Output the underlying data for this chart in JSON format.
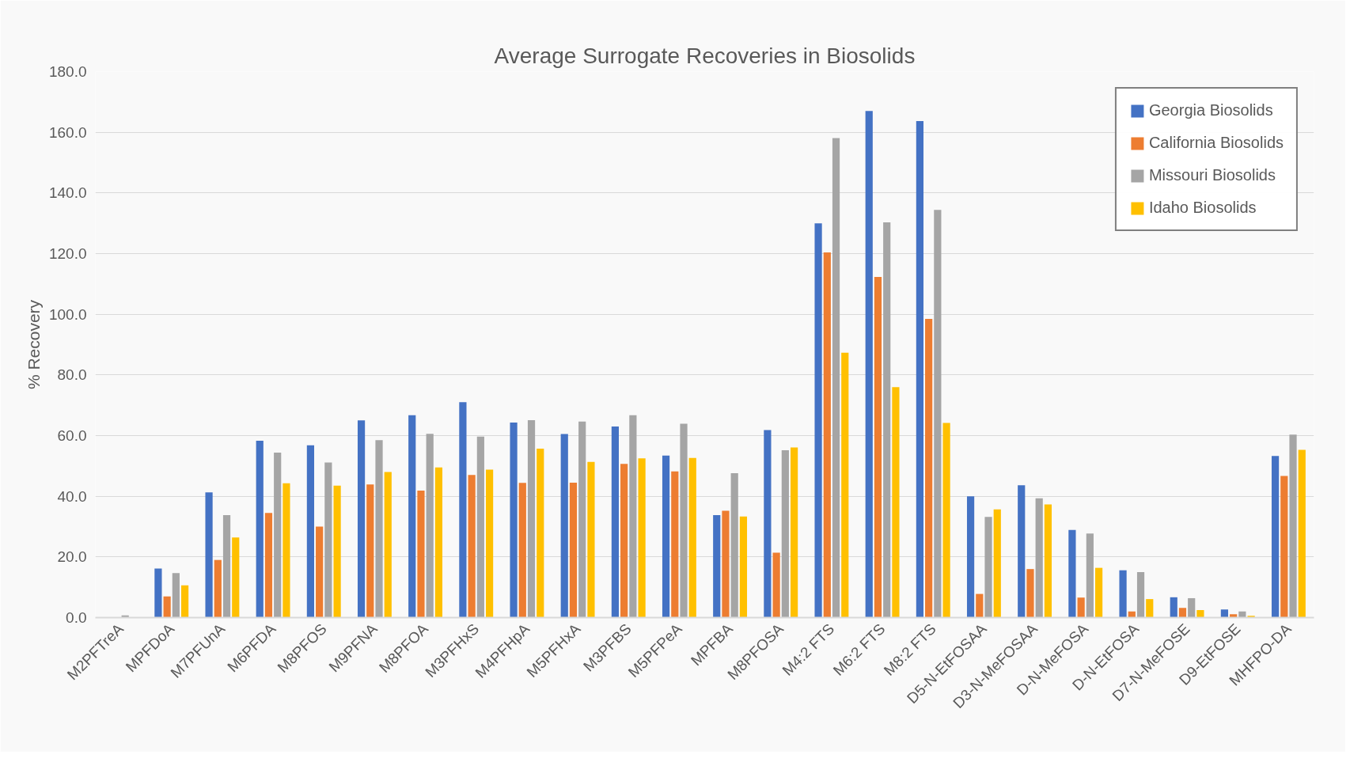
{
  "chart_data": {
    "type": "bar",
    "title": "Average Surrogate Recoveries in Biosolids",
    "ylabel": "% Recovery",
    "categories": [
      "M2PFTreA",
      "MPFDoA",
      "M7PFUnA",
      "M6PFDA",
      "M8PFOS",
      "M9PFNA",
      "M8PFOA",
      "M3PFHxS",
      "M4PFHpA",
      "M5PFHxA",
      "M3PFBS",
      "M5PFPeA",
      "MPFBA",
      "M8PFOSA",
      "M4:2 FTS",
      "M6:2 FTS",
      "M8:2 FTS",
      "D5-N-EtFOSAA",
      "D3-N-MeFOSAA",
      "D-N-MeFOSA",
      "D-N-EtFOSA",
      "D7-N-MeFOSE",
      "D9-EtFOSE",
      "MHFPO-DA"
    ],
    "series": [
      {
        "name": "Georgia Biosolids",
        "color": "#4472c4",
        "values": [
          0,
          16.2,
          41.3,
          58.3,
          56.8,
          65.0,
          66.7,
          71.0,
          64.3,
          60.5,
          63.0,
          53.4,
          33.8,
          61.8,
          130.0,
          167.0,
          163.7,
          40.0,
          43.6,
          28.9,
          15.6,
          6.7,
          2.7,
          53.3
        ]
      },
      {
        "name": "California Biosolids",
        "color": "#ed7d31",
        "values": [
          0,
          7.0,
          19.0,
          34.5,
          30.0,
          43.9,
          41.9,
          47.0,
          44.4,
          44.5,
          50.7,
          48.2,
          35.2,
          21.4,
          120.4,
          112.3,
          98.5,
          7.8,
          16.0,
          6.6,
          2.0,
          3.2,
          1.1,
          46.7
        ]
      },
      {
        "name": "Missouri Biosolids",
        "color": "#a5a5a5",
        "values": [
          0.7,
          14.7,
          33.8,
          54.4,
          51.1,
          58.5,
          60.6,
          59.7,
          65.1,
          64.6,
          66.7,
          63.9,
          47.6,
          55.2,
          158.1,
          130.3,
          134.4,
          33.2,
          39.3,
          27.7,
          15.0,
          6.4,
          2.0,
          60.3
        ]
      },
      {
        "name": "Idaho Biosolids",
        "color": "#ffc000",
        "values": [
          null,
          10.6,
          26.4,
          44.3,
          43.5,
          48.0,
          49.5,
          48.8,
          55.7,
          51.3,
          52.5,
          52.6,
          33.3,
          56.1,
          87.3,
          76.0,
          64.2,
          35.7,
          37.3,
          16.4,
          6.1,
          2.5,
          0.6,
          55.3
        ]
      }
    ],
    "ylim": [
      0,
      180
    ],
    "yticks": [
      {
        "value": 0,
        "label": "0.0"
      },
      {
        "value": 20,
        "label": "20.0"
      },
      {
        "value": 40,
        "label": "40.0"
      },
      {
        "value": 60,
        "label": "60.0"
      },
      {
        "value": 80,
        "label": "80.0"
      },
      {
        "value": 100,
        "label": "100.0"
      },
      {
        "value": 120,
        "label": "120.0"
      },
      {
        "value": 140,
        "label": "140.0"
      },
      {
        "value": 160,
        "label": "160.0"
      },
      {
        "value": 180,
        "label": "180.0"
      }
    ],
    "grid": "y",
    "legend": "top right"
  }
}
